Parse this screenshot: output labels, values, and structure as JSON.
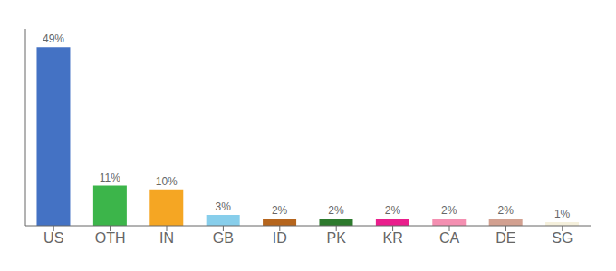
{
  "chart_data": {
    "type": "bar",
    "categories": [
      "US",
      "OTH",
      "IN",
      "GB",
      "ID",
      "PK",
      "KR",
      "CA",
      "DE",
      "SG"
    ],
    "values": [
      49,
      11,
      10,
      3,
      2,
      2,
      2,
      2,
      2,
      1
    ],
    "value_labels": [
      "49%",
      "11%",
      "10%",
      "3%",
      "2%",
      "2%",
      "2%",
      "2%",
      "2%",
      "1%"
    ],
    "data_labels": true,
    "colors": [
      "#4472c4",
      "#3cb54a",
      "#f5a623",
      "#87ceeb",
      "#b5651d",
      "#2d7a2d",
      "#e91e8c",
      "#f48fb1",
      "#d2a090",
      "#f5f0dc"
    ],
    "ylim": [
      0,
      54
    ],
    "yticks": [],
    "tick_labels": "x",
    "grid": false
  }
}
